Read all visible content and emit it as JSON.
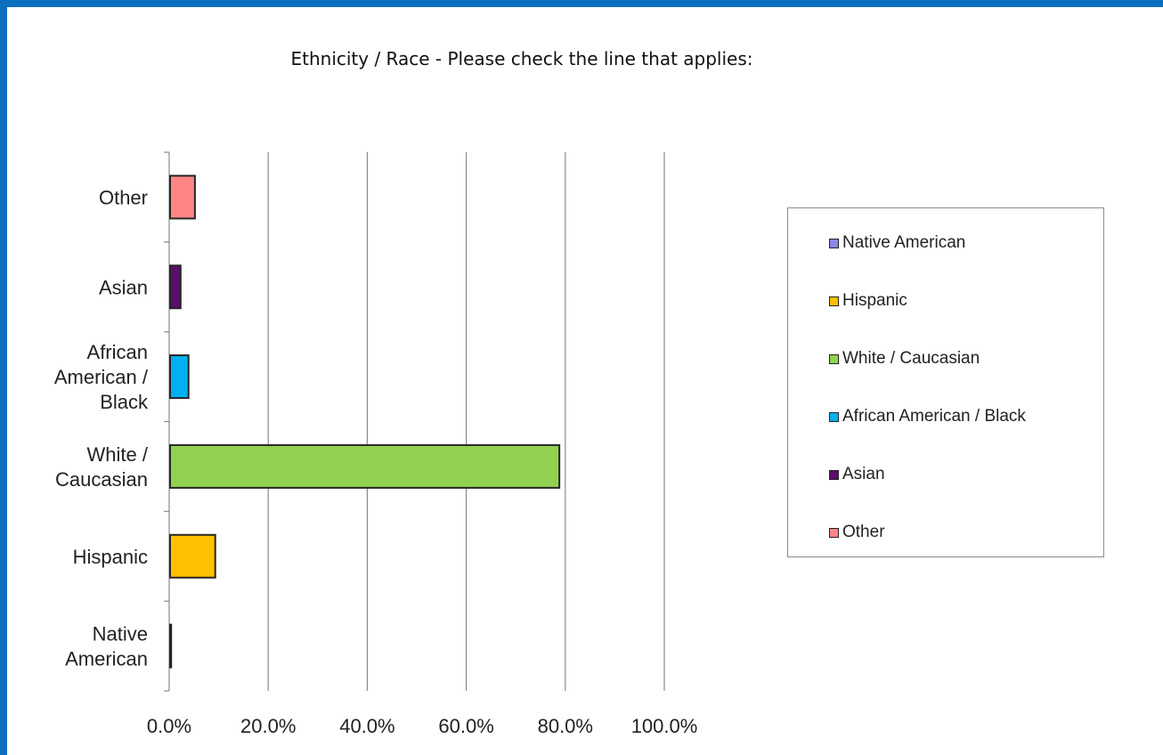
{
  "chart_data": {
    "type": "bar",
    "orientation": "horizontal",
    "title": "Ethnicity / Race - Please check the line that applies:",
    "categories": [
      "Native American",
      "Hispanic",
      "White / Caucasian",
      "African American / Black",
      "Asian",
      "Other"
    ],
    "category_label_lines": [
      [
        "Native",
        "American"
      ],
      [
        "Hispanic"
      ],
      [
        "White /",
        "Caucasian"
      ],
      [
        "African",
        "American /",
        "Black"
      ],
      [
        "Asian"
      ],
      [
        "Other"
      ]
    ],
    "values": [
      0.4,
      9.3,
      78.8,
      3.9,
      2.3,
      5.2
    ],
    "colors": [
      "#8b86e8",
      "#ffc000",
      "#92d050",
      "#00b0f0",
      "#5b0f6b",
      "#ff8585"
    ],
    "xlim": [
      0,
      100
    ],
    "x_ticks": [
      0,
      20,
      40,
      60,
      80,
      100
    ],
    "x_tick_labels": [
      "0.0%",
      "20.0%",
      "40.0%",
      "60.0%",
      "80.0%",
      "100.0%"
    ],
    "xlabel": "",
    "ylabel": "",
    "grid": "vertical",
    "legend_position": "right",
    "legend": [
      {
        "label": "Native American",
        "color": "#8b86e8"
      },
      {
        "label": "Hispanic",
        "color": "#ffc000"
      },
      {
        "label": "White / Caucasian",
        "color": "#92d050"
      },
      {
        "label": "African American / Black",
        "color": "#00b0f0"
      },
      {
        "label": "Asian",
        "color": "#5b0f6b"
      },
      {
        "label": "Other",
        "color": "#ff8585"
      }
    ]
  }
}
